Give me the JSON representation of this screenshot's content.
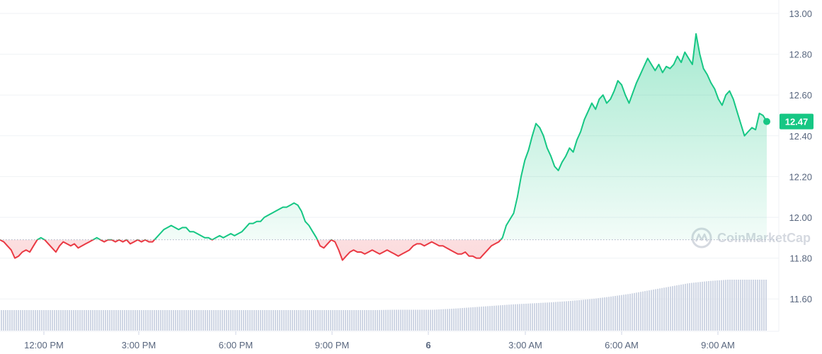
{
  "chart_data": {
    "type": "line",
    "y_ticks": [
      "13.00",
      "12.80",
      "12.60",
      "12.40",
      "12.20",
      "12.00",
      "11.80",
      "11.60"
    ],
    "ylim": [
      11.45,
      13.02
    ],
    "x_ticks": [
      "12:00 PM",
      "3:00 PM",
      "6:00 PM",
      "9:00 PM",
      "6",
      "3:00 AM",
      "6:00 AM",
      "9:00 AM"
    ],
    "baseline": 11.89,
    "current_price_label": "12.47",
    "current_price": 12.47,
    "watermark": "CoinMarketCap",
    "colors": {
      "up": "#16c784",
      "down": "#ea3943",
      "badge": "#16c784",
      "volume": "#cfd6e4",
      "grid": "#eff2f5"
    },
    "series": [
      {
        "values": [
          11.89,
          11.88,
          11.86,
          11.84,
          11.8,
          11.81,
          11.83,
          11.84,
          11.83,
          11.86,
          11.89,
          11.9,
          11.89,
          11.87,
          11.85,
          11.83,
          11.86,
          11.88,
          11.87,
          11.86,
          11.87,
          11.85,
          11.86,
          11.87,
          11.88,
          11.89,
          11.9,
          11.89,
          11.88,
          11.89,
          11.89,
          11.88,
          11.89,
          11.88,
          11.89,
          11.87,
          11.88,
          11.89,
          11.88,
          11.89,
          11.88,
          11.88,
          11.9,
          11.92,
          11.94,
          11.95,
          11.96,
          11.95,
          11.94,
          11.95,
          11.95,
          11.93,
          11.93,
          11.92,
          11.91,
          11.9,
          11.9,
          11.89,
          11.9,
          11.91,
          11.9,
          11.91,
          11.92,
          11.91,
          11.92,
          11.93,
          11.95,
          11.97,
          11.97,
          11.98,
          11.98,
          12.0,
          12.01,
          12.02,
          12.03,
          12.04,
          12.05,
          12.05,
          12.06,
          12.07,
          12.06,
          12.03,
          11.98,
          11.96,
          11.93,
          11.9,
          11.86,
          11.85,
          11.87,
          11.89,
          11.88,
          11.84,
          11.79,
          11.81,
          11.83,
          11.84,
          11.83,
          11.83,
          11.82,
          11.83,
          11.84,
          11.83,
          11.82,
          11.83,
          11.84,
          11.83,
          11.82,
          11.81,
          11.82,
          11.83,
          11.84,
          11.86,
          11.87,
          11.87,
          11.86,
          11.87,
          11.88,
          11.87,
          11.86,
          11.86,
          11.85,
          11.84,
          11.83,
          11.82,
          11.82,
          11.83,
          11.81,
          11.81,
          11.8,
          11.8,
          11.82,
          11.84,
          11.86,
          11.87,
          11.88,
          11.9,
          11.96,
          11.99,
          12.02,
          12.1,
          12.2,
          12.28,
          12.33,
          12.4,
          12.46,
          12.44,
          12.4,
          12.34,
          12.3,
          12.25,
          12.23,
          12.27,
          12.3,
          12.34,
          12.32,
          12.38,
          12.42,
          12.48,
          12.52,
          12.56,
          12.53,
          12.58,
          12.6,
          12.56,
          12.58,
          12.62,
          12.67,
          12.65,
          12.6,
          12.56,
          12.61,
          12.66,
          12.7,
          12.74,
          12.78,
          12.75,
          12.72,
          12.75,
          12.71,
          12.74,
          12.73,
          12.75,
          12.79,
          12.76,
          12.81,
          12.78,
          12.75,
          12.9,
          12.8,
          12.73,
          12.7,
          12.66,
          12.63,
          12.58,
          12.55,
          12.6,
          12.62,
          12.58,
          12.52,
          12.46,
          12.4,
          12.42,
          12.44,
          12.43,
          12.51,
          12.5,
          12.47
        ]
      }
    ],
    "volume_profile": [
      0.14,
      0.14,
      0.14,
      0.14,
      0.14,
      0.14,
      0.14,
      0.14,
      0.14,
      0.14,
      0.14,
      0.14,
      0.14,
      0.14,
      0.14,
      0.14,
      0.14,
      0.14,
      0.14,
      0.14,
      0.15,
      0.15,
      0.15,
      0.18,
      0.22,
      0.26,
      0.3,
      0.33,
      0.36,
      0.4,
      0.45,
      0.52,
      0.6,
      0.7,
      0.8,
      0.9,
      0.96,
      1.0,
      1.0,
      1.0
    ]
  }
}
